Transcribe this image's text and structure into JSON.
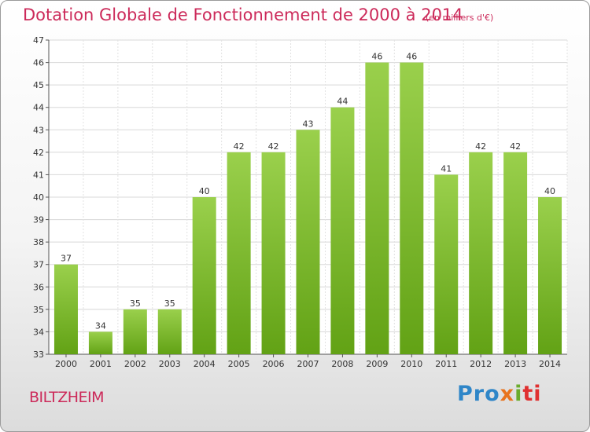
{
  "header": {
    "title": "Dotation Globale de Fonctionnement de 2000 à 2014",
    "units": "(en milliers d'€)"
  },
  "commune": "BILTZHEIM",
  "logo": {
    "text": "Proxiti",
    "icon": "proxiti-logo"
  },
  "colors": {
    "bar_light": "#9ad04c",
    "bar_dark": "#62a215",
    "title": "#cc2a5a"
  },
  "chart_data": {
    "type": "bar",
    "title": "Dotation Globale de Fonctionnement de 2000 à 2014",
    "subtitle": "(en milliers d'€)",
    "xlabel": "",
    "ylabel": "",
    "categories": [
      "2000",
      "2001",
      "2002",
      "2003",
      "2004",
      "2005",
      "2006",
      "2007",
      "2008",
      "2009",
      "2010",
      "2011",
      "2012",
      "2013",
      "2014"
    ],
    "values": [
      37,
      34,
      35,
      35,
      40,
      42,
      42,
      43,
      44,
      46,
      46,
      41,
      42,
      42,
      40
    ],
    "ylim": [
      33,
      47
    ],
    "yticks": [
      33,
      34,
      35,
      36,
      37,
      38,
      39,
      40,
      41,
      42,
      43,
      44,
      45,
      46,
      47
    ],
    "grid": true,
    "legend": "none"
  }
}
